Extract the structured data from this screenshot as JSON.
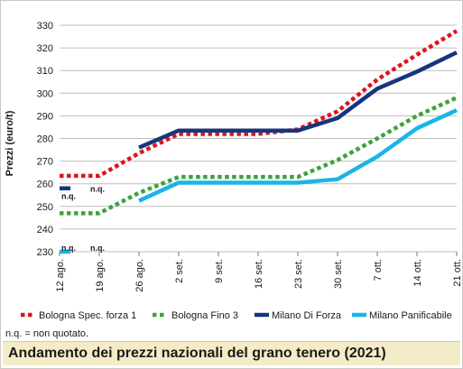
{
  "chart_data": {
    "type": "line",
    "ylabel": "Prezzi (euro/t)",
    "ylim": [
      230,
      330
    ],
    "yticks": [
      230,
      240,
      250,
      260,
      270,
      280,
      290,
      300,
      310,
      320,
      330
    ],
    "categories": [
      "12 ago.",
      "19 ago.",
      "26 ago.",
      "2 set.",
      "9 set.",
      "16 set.",
      "23 set.",
      "30 set.",
      "7 ott.",
      "14 ott.",
      "21 ott."
    ],
    "grid": "horizontal",
    "legend_position": "bottom",
    "series": [
      {
        "name": "Bologna Spec. forza 1",
        "color": "#e0121d",
        "style": "dotted",
        "values": [
          263.5,
          263.5,
          273.5,
          282,
          282,
          282,
          284,
          292,
          306,
          317,
          327.5
        ]
      },
      {
        "name": "Bologna Fino 3",
        "color": "#3aa43a",
        "style": "dotted",
        "values": [
          247,
          247,
          256,
          263,
          263,
          263,
          263,
          270.5,
          280,
          290,
          298
        ]
      },
      {
        "name": "Milano Di Forza",
        "color": "#17357e",
        "style": "solid",
        "values": [
          258,
          null,
          276,
          283.5,
          283.5,
          283.5,
          283.5,
          289,
          302,
          309.5,
          318
        ]
      },
      {
        "name": "Milano Panificabile",
        "color": "#1ab4e8",
        "style": "solid",
        "values": [
          230,
          null,
          252.5,
          260.5,
          260.5,
          260.5,
          260.5,
          262,
          272,
          284.5,
          292.5
        ]
      }
    ],
    "annotations": [
      {
        "text": "n.q.",
        "x": "12 ago.",
        "y": 255
      },
      {
        "text": "n.q.",
        "x": "19 ago.",
        "y": 258
      },
      {
        "text": "n.q.",
        "x": "12 ago.",
        "y": 232
      },
      {
        "text": "n.q.",
        "x": "19 ago.",
        "y": 232
      }
    ]
  },
  "footnote": "n.q. = non quotato.",
  "title": "Andamento dei prezzi nazionali del grano tenero (2021)"
}
